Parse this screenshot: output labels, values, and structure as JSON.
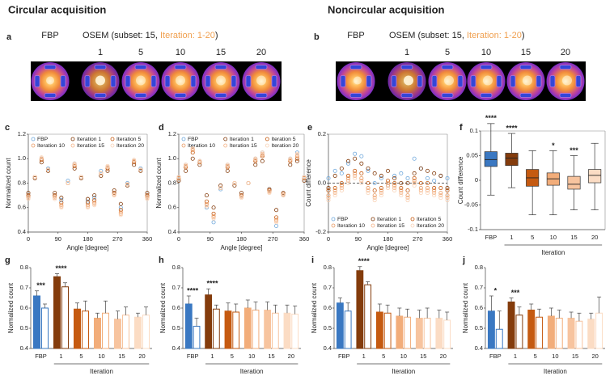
{
  "headings": {
    "circular": "Circular acquisition",
    "noncircular": "Noncircular acquisition"
  },
  "image_panels": [
    {
      "letter": "a",
      "fbp": "FBP",
      "osem_prefix": "OSEM (subset: 15, ",
      "osem_highlight": "Iteration: 1-20",
      "osem_suffix": ")",
      "iterations": [
        "1",
        "5",
        "10",
        "15",
        "20"
      ]
    },
    {
      "letter": "b",
      "fbp": "FBP",
      "osem_prefix": "OSEM (subset: 15, ",
      "osem_highlight": "Iteration: 1-20",
      "osem_suffix": ")",
      "iterations": [
        "1",
        "5",
        "10",
        "15",
        "20"
      ]
    }
  ],
  "chart_data": [
    {
      "type": "scatter",
      "letter": "c",
      "x_label": "Angle [degree]",
      "y_label": "Normalized count",
      "legend": "top",
      "x": [
        0,
        20,
        40,
        60,
        80,
        100,
        120,
        140,
        160,
        180,
        200,
        220,
        240,
        260,
        280,
        300,
        320,
        340,
        360
      ],
      "xlim": [
        0,
        360
      ],
      "xticks": [
        0,
        90,
        180,
        270,
        360
      ],
      "ylim": [
        0.4,
        1.2
      ],
      "yticks": [
        0.4,
        0.6,
        0.8,
        {
          "value": 1,
          "label": "1.0"
        },
        1.2
      ],
      "series": [
        {
          "name": "FBP",
          "color": "#6fa8dc",
          "values": [
            0.7,
            0.85,
            1.0,
            0.92,
            0.7,
            0.66,
            0.82,
            0.96,
            0.85,
            0.65,
            0.68,
            0.9,
            0.93,
            0.72,
            0.6,
            0.8,
            0.98,
            0.92,
            0.7
          ]
        },
        {
          "name": "Iteration 1",
          "color": "#843c0c",
          "values": [
            0.72,
            0.84,
            0.97,
            0.9,
            0.72,
            0.68,
            0.8,
            0.92,
            0.84,
            0.67,
            0.7,
            0.86,
            0.9,
            0.74,
            0.63,
            0.78,
            0.95,
            0.9,
            0.72
          ]
        },
        {
          "name": "Iteration 5",
          "color": "#c55a11",
          "values": [
            0.7,
            0.85,
            0.99,
            0.91,
            0.7,
            0.64,
            0.8,
            0.94,
            0.85,
            0.64,
            0.66,
            0.88,
            0.92,
            0.72,
            0.58,
            0.79,
            0.97,
            0.91,
            0.7
          ]
        },
        {
          "name": "Iteration 10",
          "color": "#e89a63",
          "values": [
            0.69,
            0.85,
            1.0,
            0.91,
            0.69,
            0.62,
            0.8,
            0.95,
            0.85,
            0.62,
            0.64,
            0.88,
            0.93,
            0.71,
            0.56,
            0.79,
            0.98,
            0.91,
            0.69
          ]
        },
        {
          "name": "Iteration 15",
          "color": "#f4b183",
          "values": [
            0.68,
            0.85,
            1.0,
            0.91,
            0.68,
            0.61,
            0.8,
            0.95,
            0.85,
            0.61,
            0.63,
            0.88,
            0.93,
            0.7,
            0.55,
            0.79,
            0.98,
            0.91,
            0.68
          ]
        },
        {
          "name": "Iteration 20",
          "color": "#f9d2b5",
          "values": [
            0.67,
            0.85,
            1.01,
            0.91,
            0.67,
            0.6,
            0.8,
            0.96,
            0.85,
            0.6,
            0.62,
            0.88,
            0.94,
            0.7,
            0.54,
            0.79,
            0.99,
            0.91,
            0.67
          ]
        }
      ]
    },
    {
      "type": "scatter",
      "letter": "d",
      "x_label": "Angle [degree]",
      "y_label": "Normalized count",
      "legend": "top",
      "x": [
        0,
        20,
        40,
        60,
        80,
        100,
        120,
        140,
        160,
        180,
        200,
        220,
        240,
        260,
        280,
        300,
        320,
        340,
        360
      ],
      "xlim": [
        0,
        360
      ],
      "xticks": [
        0,
        90,
        180,
        270,
        360
      ],
      "ylim": [
        0.4,
        1.2
      ],
      "yticks": [
        0.4,
        0.6,
        0.8,
        {
          "value": 1,
          "label": "1.0"
        },
        1.2
      ],
      "series": [
        {
          "name": "FBP",
          "color": "#6fa8dc",
          "values": [
            0.85,
            0.95,
            1.1,
            0.98,
            0.6,
            0.48,
            0.75,
            0.95,
            0.8,
            0.7,
            0.8,
            1.0,
            1.05,
            0.75,
            0.45,
            0.7,
            1.0,
            1.05,
            0.85
          ]
        },
        {
          "name": "Iteration 1",
          "color": "#843c0c",
          "values": [
            0.82,
            0.9,
            1.0,
            0.95,
            0.7,
            0.6,
            0.78,
            0.9,
            0.78,
            0.72,
            0.8,
            0.95,
            0.98,
            0.75,
            0.58,
            0.72,
            0.95,
            0.98,
            0.82
          ]
        },
        {
          "name": "Iteration 5",
          "color": "#c55a11",
          "values": [
            0.84,
            0.93,
            1.05,
            0.97,
            0.65,
            0.55,
            0.76,
            0.93,
            0.8,
            0.7,
            0.8,
            0.98,
            1.02,
            0.74,
            0.52,
            0.71,
            0.98,
            1.0,
            0.84
          ]
        },
        {
          "name": "Iteration 10",
          "color": "#e89a63",
          "values": [
            0.84,
            0.94,
            1.07,
            0.97,
            0.63,
            0.53,
            0.76,
            0.94,
            0.8,
            0.69,
            0.8,
            0.99,
            1.03,
            0.73,
            0.5,
            0.71,
            0.99,
            1.02,
            0.84
          ]
        },
        {
          "name": "Iteration 15",
          "color": "#f4b183",
          "values": [
            0.85,
            0.95,
            1.08,
            0.98,
            0.62,
            0.52,
            0.76,
            0.95,
            0.8,
            0.69,
            0.8,
            1.0,
            1.04,
            0.73,
            0.49,
            0.7,
            0.99,
            1.03,
            0.85
          ]
        },
        {
          "name": "Iteration 20",
          "color": "#f9d2b5",
          "values": [
            0.85,
            0.95,
            1.09,
            0.98,
            0.61,
            0.51,
            0.76,
            0.95,
            0.8,
            0.68,
            0.8,
            1.0,
            1.05,
            0.72,
            0.48,
            0.7,
            1.0,
            1.04,
            0.85
          ]
        }
      ]
    },
    {
      "type": "scatter",
      "letter": "e",
      "x_label": "Angle [degree]",
      "y_label": "Count difference",
      "legend": "bottom",
      "zero_line": true,
      "x": [
        0,
        20,
        40,
        60,
        80,
        100,
        120,
        140,
        160,
        180,
        200,
        220,
        240,
        260,
        280,
        300,
        320,
        340,
        360
      ],
      "xlim": [
        0,
        360
      ],
      "xticks": [
        0,
        90,
        180,
        270,
        360
      ],
      "ylim": [
        -0.2,
        0.2
      ],
      "yticks": [
        -0.2,
        {
          "value": 0,
          "label": "0.0"
        },
        0.2
      ],
      "series": [
        {
          "name": "FBP",
          "color": "#6fa8dc",
          "values": [
            0.02,
            0.05,
            0.04,
            0.08,
            0.12,
            0.11,
            0.05,
            0.0,
            0.02,
            -0.01,
            0.03,
            0.04,
            0.02,
            0.1,
            0.06,
            0.02,
            0.01,
            0.03,
            0.02
          ]
        },
        {
          "name": "Iteration 1",
          "color": "#843c0c",
          "values": [
            -0.02,
            0.03,
            0.06,
            0.09,
            0.1,
            0.08,
            0.06,
            0.04,
            0.03,
            0.05,
            0.02,
            0.0,
            0.0,
            0.04,
            0.06,
            0.05,
            0.04,
            0.03,
            -0.02
          ]
        },
        {
          "name": "Iteration 5",
          "color": "#c55a11",
          "values": [
            -0.03,
            -0.02,
            0.0,
            0.03,
            0.05,
            0.04,
            0.0,
            -0.03,
            -0.02,
            0.01,
            0.0,
            -0.02,
            -0.03,
            0.02,
            0.0,
            0.0,
            -0.02,
            -0.02,
            -0.03
          ]
        },
        {
          "name": "Iteration 10",
          "color": "#e89a63",
          "values": [
            -0.05,
            -0.03,
            -0.01,
            0.02,
            0.04,
            0.02,
            -0.02,
            -0.05,
            -0.03,
            0.0,
            -0.01,
            -0.03,
            -0.05,
            0.01,
            -0.02,
            -0.02,
            -0.03,
            -0.04,
            -0.05
          ]
        },
        {
          "name": "Iteration 15",
          "color": "#f4b183",
          "values": [
            -0.06,
            -0.04,
            -0.02,
            0.01,
            0.03,
            0.01,
            -0.03,
            -0.06,
            -0.04,
            -0.01,
            -0.02,
            -0.04,
            -0.06,
            0.0,
            -0.03,
            -0.03,
            -0.04,
            -0.05,
            -0.06
          ]
        },
        {
          "name": "Iteration 20",
          "color": "#f9d2b5",
          "values": [
            -0.07,
            -0.05,
            -0.03,
            0.0,
            0.02,
            0.0,
            -0.04,
            -0.07,
            -0.05,
            -0.02,
            -0.03,
            -0.05,
            -0.07,
            -0.01,
            -0.04,
            -0.04,
            -0.05,
            -0.06,
            -0.07
          ]
        }
      ]
    },
    {
      "type": "box",
      "letter": "f",
      "y_label": "Count difference",
      "group_label": "Iteration",
      "categories": [
        "FBP",
        "1",
        "5",
        "10",
        "15",
        "20"
      ],
      "colors": [
        "#3a78c2",
        "#843c0c",
        "#c55a11",
        "#f2ad7a",
        "#f7c49f",
        "#fbdcc4"
      ],
      "ylim": [
        -0.1,
        0.1
      ],
      "yticks": [
        -0.1,
        -0.05,
        0,
        0.05,
        0.1
      ],
      "boxes": [
        {
          "low": -0.03,
          "q1": 0.028,
          "median": 0.042,
          "q3": 0.058,
          "high": 0.115
        },
        {
          "low": -0.015,
          "q1": 0.03,
          "median": 0.045,
          "q3": 0.055,
          "high": 0.095
        },
        {
          "low": -0.07,
          "q1": -0.012,
          "median": 0.005,
          "q3": 0.022,
          "high": 0.06
        },
        {
          "low": -0.07,
          "q1": -0.01,
          "median": 0.003,
          "q3": 0.015,
          "high": 0.06
        },
        {
          "low": -0.06,
          "q1": -0.018,
          "median": -0.008,
          "q3": 0.008,
          "high": 0.05
        },
        {
          "low": -0.06,
          "q1": -0.005,
          "median": 0.01,
          "q3": 0.022,
          "high": 0.075
        }
      ],
      "significance": [
        "****",
        "****",
        null,
        "*",
        "***",
        null
      ]
    },
    {
      "type": "bar",
      "letter": "g",
      "y_label": "Normalized count",
      "group_label": "Iteration",
      "categories": [
        "FBP",
        "1",
        "5",
        "10",
        "15",
        "20"
      ],
      "colors": [
        "#3a78c2",
        "#843c0c",
        "#c55a11",
        "#f2ad7a",
        "#f7c49f",
        "#fbdcc4"
      ],
      "ylim": [
        0.4,
        0.8
      ],
      "yticks": [
        0.4,
        0.5,
        0.6,
        0.7,
        0.8
      ],
      "series": [
        {
          "style": "filled",
          "values": [
            0.66,
            0.755,
            0.595,
            0.55,
            0.545,
            0.555
          ],
          "errors": [
            0.025,
            0.015,
            0.03,
            0.025,
            0.04,
            0.02
          ]
        },
        {
          "style": "open",
          "values": [
            0.6,
            0.705,
            0.585,
            0.575,
            0.565,
            0.565
          ],
          "errors": [
            0.02,
            0.02,
            0.05,
            0.06,
            0.04,
            0.04
          ]
        }
      ],
      "significance": [
        "***",
        "****",
        null,
        null,
        null,
        null
      ]
    },
    {
      "type": "bar",
      "letter": "h",
      "y_label": "Normalized count",
      "group_label": "Iteration",
      "categories": [
        "FBP",
        "1",
        "5",
        "10",
        "15",
        "20"
      ],
      "colors": [
        "#3a78c2",
        "#843c0c",
        "#c55a11",
        "#f2ad7a",
        "#f7c49f",
        "#fbdcc4"
      ],
      "ylim": [
        0.4,
        0.8
      ],
      "yticks": [
        0.4,
        0.5,
        0.6,
        0.7,
        0.8
      ],
      "series": [
        {
          "style": "filled",
          "values": [
            0.62,
            0.665,
            0.585,
            0.6,
            0.59,
            0.575
          ],
          "errors": [
            0.04,
            0.03,
            0.04,
            0.04,
            0.04,
            0.04
          ]
        },
        {
          "style": "open",
          "values": [
            0.51,
            0.595,
            0.58,
            0.59,
            0.575,
            0.57
          ],
          "errors": [
            0.04,
            0.02,
            0.04,
            0.04,
            0.04,
            0.04
          ]
        }
      ],
      "significance": [
        "****",
        "****",
        null,
        null,
        null,
        null
      ]
    },
    {
      "type": "bar",
      "letter": "i",
      "y_label": "Normalized count",
      "group_label": "Iteration",
      "categories": [
        "FBP",
        "1",
        "5",
        "10",
        "15",
        "20"
      ],
      "colors": [
        "#3a78c2",
        "#843c0c",
        "#c55a11",
        "#f2ad7a",
        "#f7c49f",
        "#fbdcc4"
      ],
      "ylim": [
        0.4,
        0.8
      ],
      "yticks": [
        0.4,
        0.5,
        0.6,
        0.7,
        0.8
      ],
      "series": [
        {
          "style": "filled",
          "values": [
            0.625,
            0.785,
            0.58,
            0.56,
            0.55,
            0.55
          ],
          "errors": [
            0.025,
            0.02,
            0.04,
            0.04,
            0.04,
            0.04
          ]
        },
        {
          "style": "open",
          "values": [
            0.585,
            0.715,
            0.575,
            0.555,
            0.55,
            0.54
          ],
          "errors": [
            0.04,
            0.015,
            0.04,
            0.04,
            0.05,
            0.04
          ]
        }
      ],
      "significance": [
        null,
        "****",
        null,
        null,
        null,
        null
      ]
    },
    {
      "type": "bar",
      "letter": "j",
      "y_label": "Normalized count",
      "group_label": "Iteration",
      "categories": [
        "FBP",
        "1",
        "5",
        "10",
        "15",
        "20"
      ],
      "colors": [
        "#3a78c2",
        "#843c0c",
        "#c55a11",
        "#f2ad7a",
        "#f7c49f",
        "#fbdcc4"
      ],
      "ylim": [
        0.4,
        0.8
      ],
      "yticks": [
        0.4,
        0.5,
        0.6,
        0.7,
        0.8
      ],
      "series": [
        {
          "style": "filled",
          "values": [
            0.585,
            0.63,
            0.59,
            0.56,
            0.55,
            0.545
          ],
          "errors": [
            0.075,
            0.02,
            0.03,
            0.04,
            0.03,
            0.03
          ]
        },
        {
          "style": "open",
          "values": [
            0.495,
            0.565,
            0.555,
            0.55,
            0.535,
            0.575
          ],
          "errors": [
            0.09,
            0.04,
            0.04,
            0.04,
            0.04,
            0.08
          ]
        }
      ],
      "significance": [
        "*",
        "***",
        null,
        null,
        null,
        null
      ]
    }
  ]
}
